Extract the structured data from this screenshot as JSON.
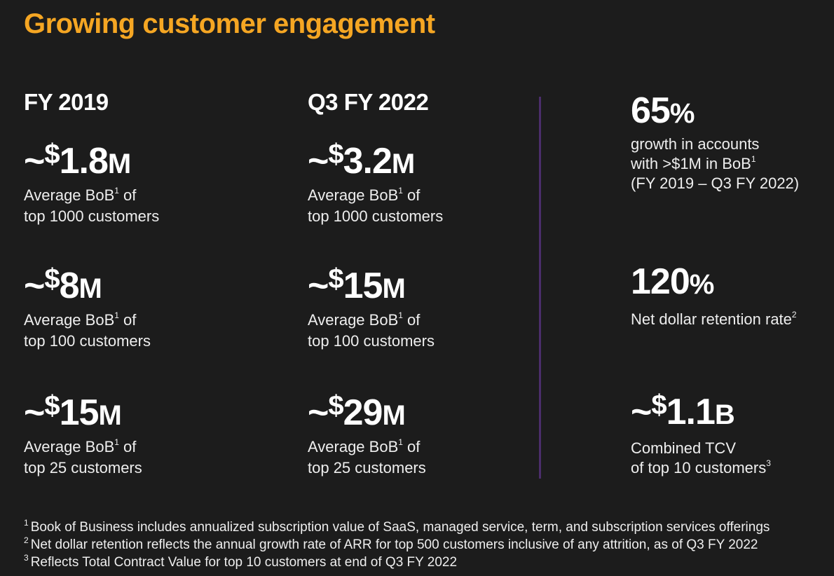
{
  "title": "Growing customer engagement",
  "colors": {
    "title": "#f5a623",
    "background": "#1c1c1c",
    "divider": "#4b2d6b"
  },
  "columns": [
    {
      "header": "FY 2019",
      "stats": [
        {
          "prefix": "~",
          "currency": "$",
          "number": "1.8",
          "unit": "M",
          "desc_line1": "Average BoB",
          "sup": "1",
          "desc_line1_tail": " of",
          "desc_line2": "top 1000 customers"
        },
        {
          "prefix": "~",
          "currency": "$",
          "number": "8",
          "unit": "M",
          "desc_line1": "Average BoB",
          "sup": "1",
          "desc_line1_tail": " of",
          "desc_line2": "top 100 customers"
        },
        {
          "prefix": "~",
          "currency": "$",
          "number": "15",
          "unit": "M",
          "desc_line1": "Average BoB",
          "sup": "1",
          "desc_line1_tail": " of",
          "desc_line2": "top 25 customers"
        }
      ]
    },
    {
      "header": "Q3 FY 2022",
      "stats": [
        {
          "prefix": "~",
          "currency": "$",
          "number": "3.2",
          "unit": "M",
          "desc_line1": "Average BoB",
          "sup": "1",
          "desc_line1_tail": " of",
          "desc_line2": "top 1000 customers"
        },
        {
          "prefix": "~",
          "currency": "$",
          "number": "15",
          "unit": "M",
          "desc_line1": "Average BoB",
          "sup": "1",
          "desc_line1_tail": " of",
          "desc_line2": "top 100 customers"
        },
        {
          "prefix": "~",
          "currency": "$",
          "number": "29",
          "unit": "M",
          "desc_line1": "Average BoB",
          "sup": "1",
          "desc_line1_tail": " of",
          "desc_line2": "top 25 customers"
        }
      ]
    }
  ],
  "highlights": [
    {
      "number": "65",
      "unit": "%",
      "lines": [
        "growth in accounts",
        "with >$1M in BoB",
        "(FY 2019 – Q3 FY 2022)"
      ],
      "sup_line": 1,
      "sup": "1"
    },
    {
      "number": "120",
      "unit": "%",
      "lines": [
        "Net dollar retention rate"
      ],
      "sup_line": 0,
      "sup": "2"
    },
    {
      "prefix": "~",
      "currency": "$",
      "number": "1.1",
      "unit": "B",
      "lines": [
        "Combined TCV",
        "of top 10 customers"
      ],
      "sup_line": 1,
      "sup": "3"
    }
  ],
  "footnotes": [
    {
      "num": "1",
      "text": "Book of Business includes annualized subscription value of SaaS, managed service, term, and subscription services offerings"
    },
    {
      "num": "2",
      "text": "Net dollar retention reflects the annual growth rate of ARR for top 500 customers inclusive of any attrition, as of Q3 FY 2022"
    },
    {
      "num": "3",
      "text": "Reflects Total Contract Value for top 10 customers at end of Q3 FY 2022"
    }
  ]
}
